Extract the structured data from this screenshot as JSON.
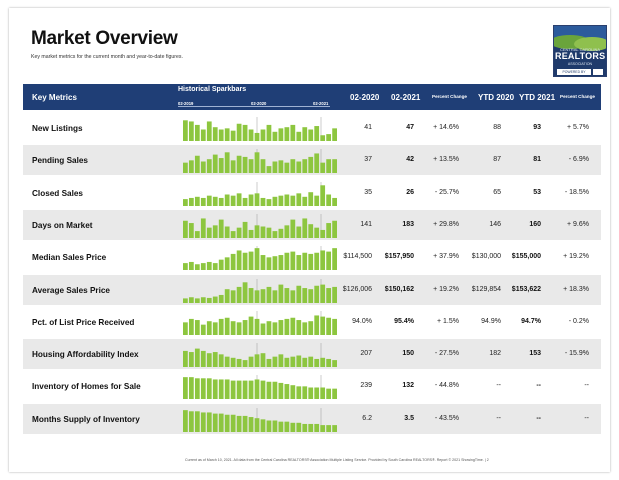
{
  "title": "Market Overview",
  "subtitle": "Key market metrics for the current month and year-to-date figures.",
  "logo": {
    "line_top": "CENTRAL CAROLINA",
    "line_main": "REALTORS",
    "line_bottom": "ASSOCIATION",
    "badge": "POWERED BY"
  },
  "header": {
    "key_metrics": "Key Metrics",
    "historical": "Historical Sparkbars",
    "tick1": "02-2019",
    "tick2": "02-2020",
    "tick3": "02-2021",
    "col_prev": "02-2020",
    "col_cur": "02-2021",
    "col_pct": "Percent Change",
    "col_ytd_prev": "YTD 2020",
    "col_ytd_cur": "YTD 2021",
    "col_ytd_pct": "Percent Change"
  },
  "colors": {
    "header_bg": "#1f3e76",
    "bar": "#8dc63f",
    "row_shade": "#e9e9e9"
  },
  "rows": [
    {
      "label": "New Listings",
      "prev": "41",
      "cur": "47",
      "pct": "+ 14.6%",
      "ytd_prev": "88",
      "ytd_cur": "93",
      "ytd_pct": "+ 5.7%",
      "bars": [
        0.9,
        0.85,
        0.7,
        0.5,
        0.85,
        0.6,
        0.5,
        0.55,
        0.45,
        0.75,
        0.7,
        0.5,
        0.35,
        0.5,
        0.7,
        0.4,
        0.55,
        0.6,
        0.7,
        0.4,
        0.6,
        0.5,
        0.65,
        0.25,
        0.3,
        0.55
      ]
    },
    {
      "label": "Pending Sales",
      "prev": "37",
      "cur": "42",
      "pct": "+ 13.5%",
      "ytd_prev": "87",
      "ytd_cur": "81",
      "ytd_pct": "- 6.9%",
      "bars": [
        0.45,
        0.55,
        0.75,
        0.5,
        0.6,
        0.8,
        0.65,
        0.9,
        0.55,
        0.75,
        0.7,
        0.6,
        0.9,
        0.6,
        0.3,
        0.5,
        0.55,
        0.45,
        0.6,
        0.5,
        0.6,
        0.7,
        0.85,
        0.45,
        0.6,
        0.6
      ]
    },
    {
      "label": "Closed Sales",
      "prev": "35",
      "cur": "26",
      "pct": "- 25.7%",
      "ytd_prev": "65",
      "ytd_cur": "53",
      "ytd_pct": "- 18.5%",
      "bars": [
        0.3,
        0.35,
        0.4,
        0.35,
        0.45,
        0.4,
        0.35,
        0.5,
        0.45,
        0.55,
        0.35,
        0.5,
        0.55,
        0.35,
        0.3,
        0.4,
        0.45,
        0.5,
        0.45,
        0.55,
        0.4,
        0.6,
        0.45,
        0.9,
        0.5,
        0.35
      ]
    },
    {
      "label": "Days on Market",
      "prev": "141",
      "cur": "183",
      "pct": "+ 29.8%",
      "ytd_prev": "146",
      "ytd_cur": "160",
      "ytd_pct": "+ 9.6%",
      "bars": [
        0.75,
        0.65,
        0.3,
        0.85,
        0.45,
        0.55,
        0.8,
        0.5,
        0.3,
        0.45,
        0.7,
        0.35,
        0.55,
        0.5,
        0.45,
        0.3,
        0.4,
        0.55,
        0.8,
        0.5,
        0.85,
        0.6,
        0.45,
        0.35,
        0.65,
        0.75
      ]
    },
    {
      "label": "Median Sales Price",
      "prev": "$114,500",
      "cur": "$157,950",
      "pct": "+ 37.9%",
      "ytd_prev": "$130,000",
      "ytd_cur": "$155,000",
      "ytd_pct": "+ 19.2%",
      "bars": [
        0.3,
        0.35,
        0.25,
        0.3,
        0.35,
        0.3,
        0.45,
        0.55,
        0.7,
        0.85,
        0.75,
        0.8,
        0.95,
        0.65,
        0.55,
        0.6,
        0.65,
        0.75,
        0.8,
        0.65,
        0.75,
        0.7,
        0.75,
        0.85,
        0.8,
        0.95
      ]
    },
    {
      "label": "Average Sales Price",
      "prev": "$126,006",
      "cur": "$150,162",
      "pct": "+ 19.2%",
      "ytd_prev": "$129,854",
      "ytd_cur": "$153,622",
      "ytd_pct": "+ 18.3%",
      "bars": [
        0.2,
        0.25,
        0.2,
        0.25,
        0.22,
        0.28,
        0.35,
        0.6,
        0.55,
        0.7,
        0.9,
        0.65,
        0.55,
        0.6,
        0.7,
        0.55,
        0.8,
        0.65,
        0.55,
        0.75,
        0.65,
        0.6,
        0.75,
        0.8,
        0.65,
        0.7
      ]
    },
    {
      "label": "Pct. of List Price Received",
      "prev": "94.0%",
      "cur": "95.4%",
      "pct": "+ 1.5%",
      "ytd_prev": "94.9%",
      "ytd_cur": "94.7%",
      "ytd_pct": "- 0.2%",
      "bars": [
        0.55,
        0.7,
        0.65,
        0.45,
        0.6,
        0.55,
        0.7,
        0.75,
        0.6,
        0.55,
        0.65,
        0.8,
        0.7,
        0.5,
        0.6,
        0.55,
        0.65,
        0.7,
        0.75,
        0.65,
        0.55,
        0.6,
        0.85,
        0.8,
        0.75,
        0.7
      ]
    },
    {
      "label": "Housing Affordability Index",
      "prev": "207",
      "cur": "150",
      "pct": "- 27.5%",
      "ytd_prev": "182",
      "ytd_cur": "153",
      "ytd_pct": "- 15.9%",
      "bars": [
        0.7,
        0.65,
        0.8,
        0.7,
        0.6,
        0.65,
        0.55,
        0.45,
        0.4,
        0.35,
        0.3,
        0.45,
        0.55,
        0.6,
        0.35,
        0.45,
        0.55,
        0.4,
        0.45,
        0.5,
        0.4,
        0.45,
        0.35,
        0.4,
        0.35,
        0.3
      ]
    },
    {
      "label": "Inventory of Homes for Sale",
      "prev": "239",
      "cur": "132",
      "pct": "- 44.8%",
      "ytd_prev": "--",
      "ytd_cur": "--",
      "ytd_pct": "--",
      "bars": [
        0.95,
        0.95,
        0.9,
        0.9,
        0.9,
        0.85,
        0.85,
        0.85,
        0.8,
        0.8,
        0.8,
        0.8,
        0.85,
        0.8,
        0.75,
        0.75,
        0.7,
        0.65,
        0.6,
        0.55,
        0.55,
        0.5,
        0.5,
        0.5,
        0.45,
        0.45
      ]
    },
    {
      "label": "Months Supply of Inventory",
      "prev": "6.2",
      "cur": "3.5",
      "pct": "- 43.5%",
      "ytd_prev": "--",
      "ytd_cur": "--",
      "ytd_pct": "--",
      "bars": [
        0.95,
        0.9,
        0.9,
        0.85,
        0.85,
        0.8,
        0.8,
        0.75,
        0.75,
        0.7,
        0.7,
        0.65,
        0.6,
        0.55,
        0.5,
        0.5,
        0.45,
        0.45,
        0.4,
        0.4,
        0.35,
        0.35,
        0.35,
        0.3,
        0.3,
        0.3
      ]
    }
  ],
  "footer": "Current as of March 10, 2021. All data from the Central Carolina REALTORS® Association Multiple Listing Service. Provided by South Carolina REALTORS®. Report © 2021 ShowingTime.  |  2"
}
